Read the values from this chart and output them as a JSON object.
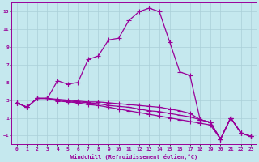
{
  "xlabel": "Windchill (Refroidissement éolien,°C)",
  "xlim": [
    -0.5,
    23.5
  ],
  "ylim": [
    -2.0,
    14.0
  ],
  "yticks": [
    -1,
    1,
    3,
    5,
    7,
    9,
    11,
    13
  ],
  "xticks": [
    0,
    1,
    2,
    3,
    4,
    5,
    6,
    7,
    8,
    9,
    10,
    11,
    12,
    13,
    14,
    15,
    16,
    17,
    18,
    19,
    20,
    21,
    22,
    23
  ],
  "bg_color": "#c5e8ee",
  "grid_color": "#aacfd8",
  "line_color": "#990099",
  "line_width": 0.9,
  "marker": "+",
  "marker_size": 4,
  "curves": [
    [
      2.7,
      2.2,
      3.2,
      3.2,
      5.2,
      4.8,
      5.0,
      7.6,
      8.0,
      9.8,
      10.0,
      12.0,
      13.0,
      13.4,
      13.0,
      9.6,
      6.2,
      5.8,
      0.8,
      0.5,
      -1.4,
      1.0,
      -0.7,
      -1.1
    ],
    [
      2.7,
      2.2,
      3.2,
      3.2,
      3.1,
      3.0,
      2.9,
      2.8,
      2.8,
      2.7,
      2.6,
      2.5,
      2.4,
      2.3,
      2.2,
      2.0,
      1.8,
      1.5,
      0.8,
      0.5,
      -1.4,
      1.0,
      -0.7,
      -1.1
    ],
    [
      2.7,
      2.2,
      3.2,
      3.2,
      3.0,
      2.9,
      2.8,
      2.7,
      2.6,
      2.4,
      2.3,
      2.2,
      2.0,
      1.8,
      1.7,
      1.5,
      1.3,
      1.1,
      0.8,
      0.5,
      -1.4,
      1.0,
      -0.7,
      -1.1
    ],
    [
      2.7,
      2.2,
      3.2,
      3.2,
      2.9,
      2.8,
      2.7,
      2.5,
      2.4,
      2.2,
      2.0,
      1.8,
      1.6,
      1.4,
      1.2,
      1.0,
      0.8,
      0.6,
      0.4,
      0.2,
      -1.4,
      1.0,
      -0.7,
      -1.1
    ]
  ]
}
